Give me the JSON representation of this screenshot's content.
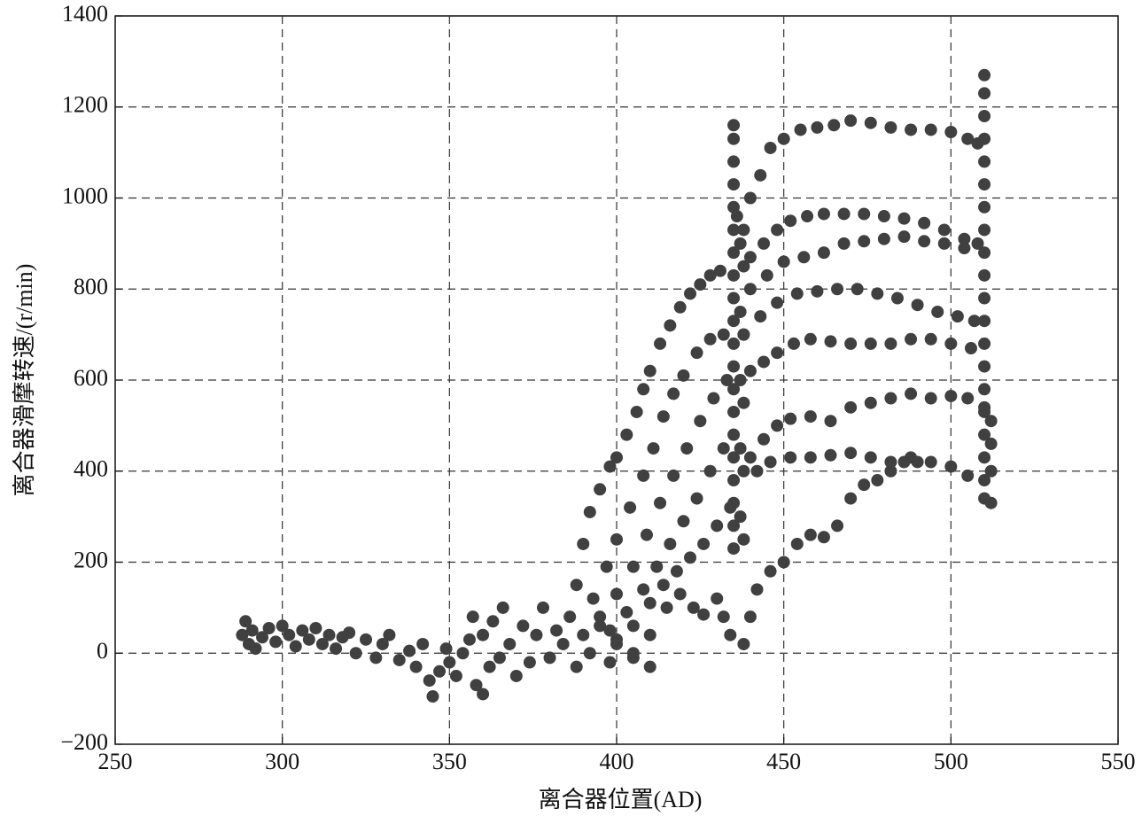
{
  "chart_data": {
    "type": "scatter",
    "xlabel": "离合器位置(AD)",
    "ylabel": "离合器滑摩转速/(r/min)",
    "xlim": [
      250,
      550
    ],
    "ylim": [
      -200,
      1400
    ],
    "xticks": [
      250,
      300,
      350,
      400,
      450,
      500,
      550
    ],
    "yticks": [
      {
        "value": -200,
        "label": "−200"
      },
      0,
      200,
      400,
      600,
      800,
      1000,
      1200,
      1400
    ],
    "grid": true,
    "color": "#404040",
    "x": [
      288,
      289,
      290,
      291,
      292,
      294,
      296,
      298,
      300,
      302,
      304,
      306,
      308,
      310,
      312,
      314,
      316,
      318,
      320,
      322,
      325,
      328,
      330,
      332,
      335,
      338,
      340,
      342,
      344,
      345,
      347,
      349,
      350,
      352,
      354,
      356,
      357,
      358,
      360,
      360,
      362,
      363,
      365,
      366,
      368,
      370,
      372,
      374,
      376,
      378,
      380,
      382,
      384,
      386,
      388,
      390,
      392,
      395,
      398,
      400,
      405,
      410,
      388,
      390,
      392,
      395,
      398,
      400,
      403,
      406,
      408,
      410,
      413,
      416,
      419,
      422,
      425,
      428,
      431,
      393,
      397,
      400,
      404,
      408,
      411,
      414,
      417,
      420,
      424,
      428,
      432,
      395,
      400,
      405,
      409,
      413,
      417,
      421,
      425,
      429,
      433,
      398,
      403,
      408,
      412,
      416,
      420,
      424,
      428,
      432,
      400,
      405,
      410,
      414,
      418,
      422,
      426,
      430,
      434,
      405,
      410,
      415,
      419,
      423,
      426,
      430,
      432,
      434,
      438,
      435,
      435,
      435,
      435,
      435,
      435,
      435,
      435,
      435,
      435,
      435,
      435,
      435,
      435,
      435,
      435,
      435,
      435,
      435,
      435,
      436,
      437,
      437,
      437,
      437,
      437,
      438,
      438,
      438,
      438,
      438,
      438,
      440,
      443,
      446,
      450,
      455,
      460,
      465,
      470,
      476,
      482,
      488,
      494,
      500,
      505,
      508,
      440,
      444,
      448,
      452,
      457,
      462,
      468,
      474,
      480,
      486,
      492,
      498,
      504,
      508,
      440,
      445,
      450,
      456,
      462,
      468,
      474,
      480,
      486,
      492,
      498,
      504,
      438,
      443,
      448,
      454,
      460,
      466,
      472,
      478,
      484,
      490,
      496,
      502,
      507,
      440,
      444,
      448,
      453,
      458,
      464,
      470,
      476,
      482,
      488,
      494,
      500,
      506,
      440,
      444,
      448,
      452,
      458,
      464,
      470,
      476,
      482,
      488,
      494,
      500,
      505,
      510,
      442,
      446,
      452,
      458,
      464,
      470,
      476,
      482,
      488,
      494,
      500,
      505,
      440,
      442,
      446,
      450,
      454,
      458,
      462,
      466,
      470,
      474,
      478,
      482,
      486,
      490,
      510,
      510,
      510,
      510,
      510,
      510,
      510,
      510,
      510,
      510,
      510,
      510,
      510,
      510,
      510,
      510,
      510,
      510,
      510,
      510,
      512,
      512,
      512,
      512
    ],
    "values": [
      40,
      70,
      20,
      50,
      10,
      35,
      55,
      25,
      60,
      40,
      15,
      50,
      30,
      55,
      20,
      40,
      10,
      35,
      45,
      0,
      30,
      -10,
      20,
      40,
      -15,
      5,
      -30,
      20,
      -60,
      -95,
      -40,
      10,
      -20,
      -50,
      0,
      30,
      80,
      -70,
      -90,
      40,
      -30,
      70,
      -10,
      100,
      20,
      -50,
      60,
      -20,
      40,
      100,
      -10,
      50,
      20,
      80,
      -30,
      40,
      0,
      60,
      -20,
      30,
      -10,
      -30,
      150,
      240,
      310,
      360,
      410,
      430,
      480,
      530,
      580,
      620,
      680,
      720,
      760,
      790,
      810,
      830,
      840,
      120,
      190,
      250,
      320,
      390,
      450,
      520,
      570,
      610,
      660,
      690,
      700,
      80,
      130,
      190,
      260,
      330,
      390,
      450,
      510,
      560,
      600,
      50,
      90,
      140,
      190,
      240,
      290,
      340,
      400,
      450,
      20,
      60,
      110,
      150,
      180,
      210,
      240,
      280,
      320,
      0,
      40,
      100,
      130,
      100,
      85,
      120,
      80,
      40,
      20,
      1160,
      1130,
      1080,
      1030,
      980,
      930,
      880,
      830,
      780,
      730,
      680,
      630,
      580,
      530,
      480,
      430,
      380,
      330,
      280,
      230,
      960,
      900,
      750,
      600,
      450,
      300,
      930,
      850,
      700,
      550,
      400,
      250,
      1000,
      1050,
      1110,
      1130,
      1150,
      1155,
      1160,
      1170,
      1165,
      1155,
      1150,
      1150,
      1145,
      1130,
      1120,
      870,
      900,
      930,
      950,
      960,
      965,
      965,
      965,
      960,
      955,
      945,
      930,
      910,
      900,
      800,
      830,
      860,
      870,
      880,
      900,
      905,
      910,
      915,
      905,
      900,
      890,
      700,
      740,
      770,
      790,
      795,
      800,
      800,
      790,
      780,
      765,
      750,
      740,
      730,
      620,
      640,
      660,
      680,
      690,
      685,
      680,
      680,
      680,
      690,
      690,
      680,
      670,
      430,
      470,
      500,
      515,
      520,
      510,
      540,
      550,
      560,
      570,
      560,
      565,
      560,
      540,
      400,
      420,
      430,
      430,
      435,
      440,
      430,
      420,
      430,
      420,
      410,
      390,
      80,
      140,
      180,
      200,
      240,
      260,
      255,
      280,
      340,
      370,
      380,
      400,
      420,
      420,
      1270,
      1230,
      1180,
      1130,
      1080,
      1030,
      980,
      930,
      880,
      830,
      780,
      730,
      680,
      630,
      580,
      530,
      480,
      430,
      380,
      340,
      510,
      460,
      400,
      330
    ]
  }
}
